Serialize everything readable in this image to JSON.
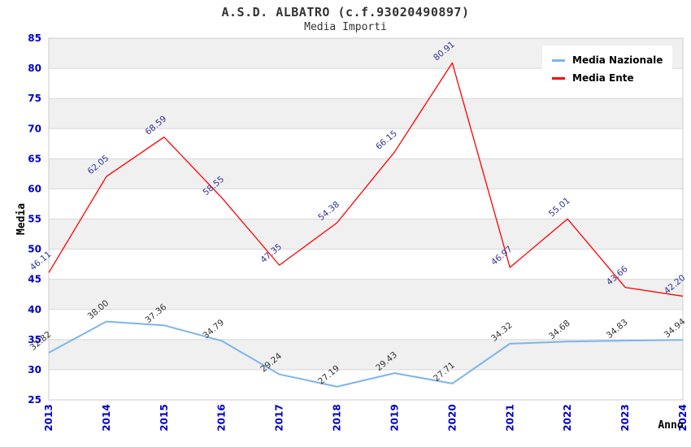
{
  "header": {
    "title": "A.S.D. ALBATRO (c.f.93020490897)",
    "subtitle": "Media Importi"
  },
  "legend": {
    "position": "top-right",
    "items": [
      {
        "label": "Media Nazionale",
        "color": "#7cb5ec"
      },
      {
        "label": "Media Ente",
        "color": "#ff0000"
      }
    ]
  },
  "chart_data": {
    "type": "line",
    "title": "A.S.D. ALBATRO (c.f.93020490897)",
    "subtitle": "Media Importi",
    "xlabel": "Anno",
    "ylabel": "Media",
    "categories": [
      "2013",
      "2014",
      "2015",
      "2016",
      "2017",
      "2018",
      "2019",
      "2020",
      "2021",
      "2022",
      "2023",
      "2024"
    ],
    "series": [
      {
        "name": "Media Nazionale",
        "color": "#7cb5ec",
        "label_color": "#333333",
        "line_width": 2,
        "values": [
          32.82,
          38.0,
          37.36,
          34.79,
          29.24,
          27.19,
          29.43,
          27.71,
          34.32,
          34.68,
          34.83,
          34.94
        ]
      },
      {
        "name": "Media Ente",
        "color": "#ff0000",
        "label_color": "#333399",
        "line_width": 1.3,
        "values": [
          46.11,
          62.05,
          68.59,
          58.55,
          47.35,
          54.38,
          66.15,
          80.91,
          46.97,
          55.01,
          43.66,
          42.2
        ]
      }
    ],
    "ylim": [
      25,
      85
    ],
    "ytick_step": 5,
    "grid": true,
    "band_fill": "#f0f0f0",
    "legend_position": "top-right"
  },
  "colors": {
    "tick_label": "#0000cc",
    "grid_line": "#d8d8d8",
    "plot_border": "#cccccc",
    "title_text": "#333333"
  }
}
